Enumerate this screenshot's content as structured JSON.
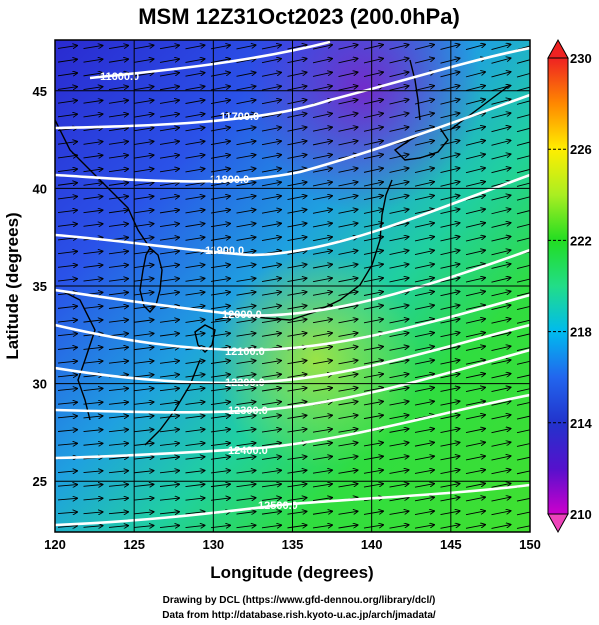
{
  "title": "MSM 12Z31Oct2023 (200.0hPa)",
  "x_axis": {
    "label": "Longitude (degrees)",
    "range": [
      120,
      150
    ],
    "ticks": [
      "120",
      "125",
      "130",
      "135",
      "140",
      "145",
      "150"
    ]
  },
  "y_axis": {
    "label": "Latitude  (degrees)",
    "range": [
      22.4,
      47.6
    ],
    "ticks": [
      "25",
      "30",
      "35",
      "40",
      "45"
    ]
  },
  "colorbar": {
    "range": [
      210,
      230
    ],
    "ticks": [
      "210",
      "214",
      "218",
      "222",
      "226",
      "230"
    ],
    "colors": [
      "#cc00cc",
      "#3322cc",
      "#2255ee",
      "#00bbee",
      "#22dd88",
      "#22dd22",
      "#aaee22",
      "#ffee00",
      "#ff8800",
      "#ee2222"
    ]
  },
  "contours": {
    "color": "#ffffff",
    "labels": [
      "11600.0",
      "11700.0",
      "11800.0",
      "11900.0",
      "12000.0",
      "12100.0",
      "12200.0",
      "12300.0",
      "12400.0",
      "12500.0"
    ]
  },
  "credits": {
    "line1": "Drawing by DCL (https://www.gfd-dennou.org/library/dcl/)",
    "line2": "Data from http://database.rish.kyoto-u.ac.jp/arch/jmadata/"
  }
}
